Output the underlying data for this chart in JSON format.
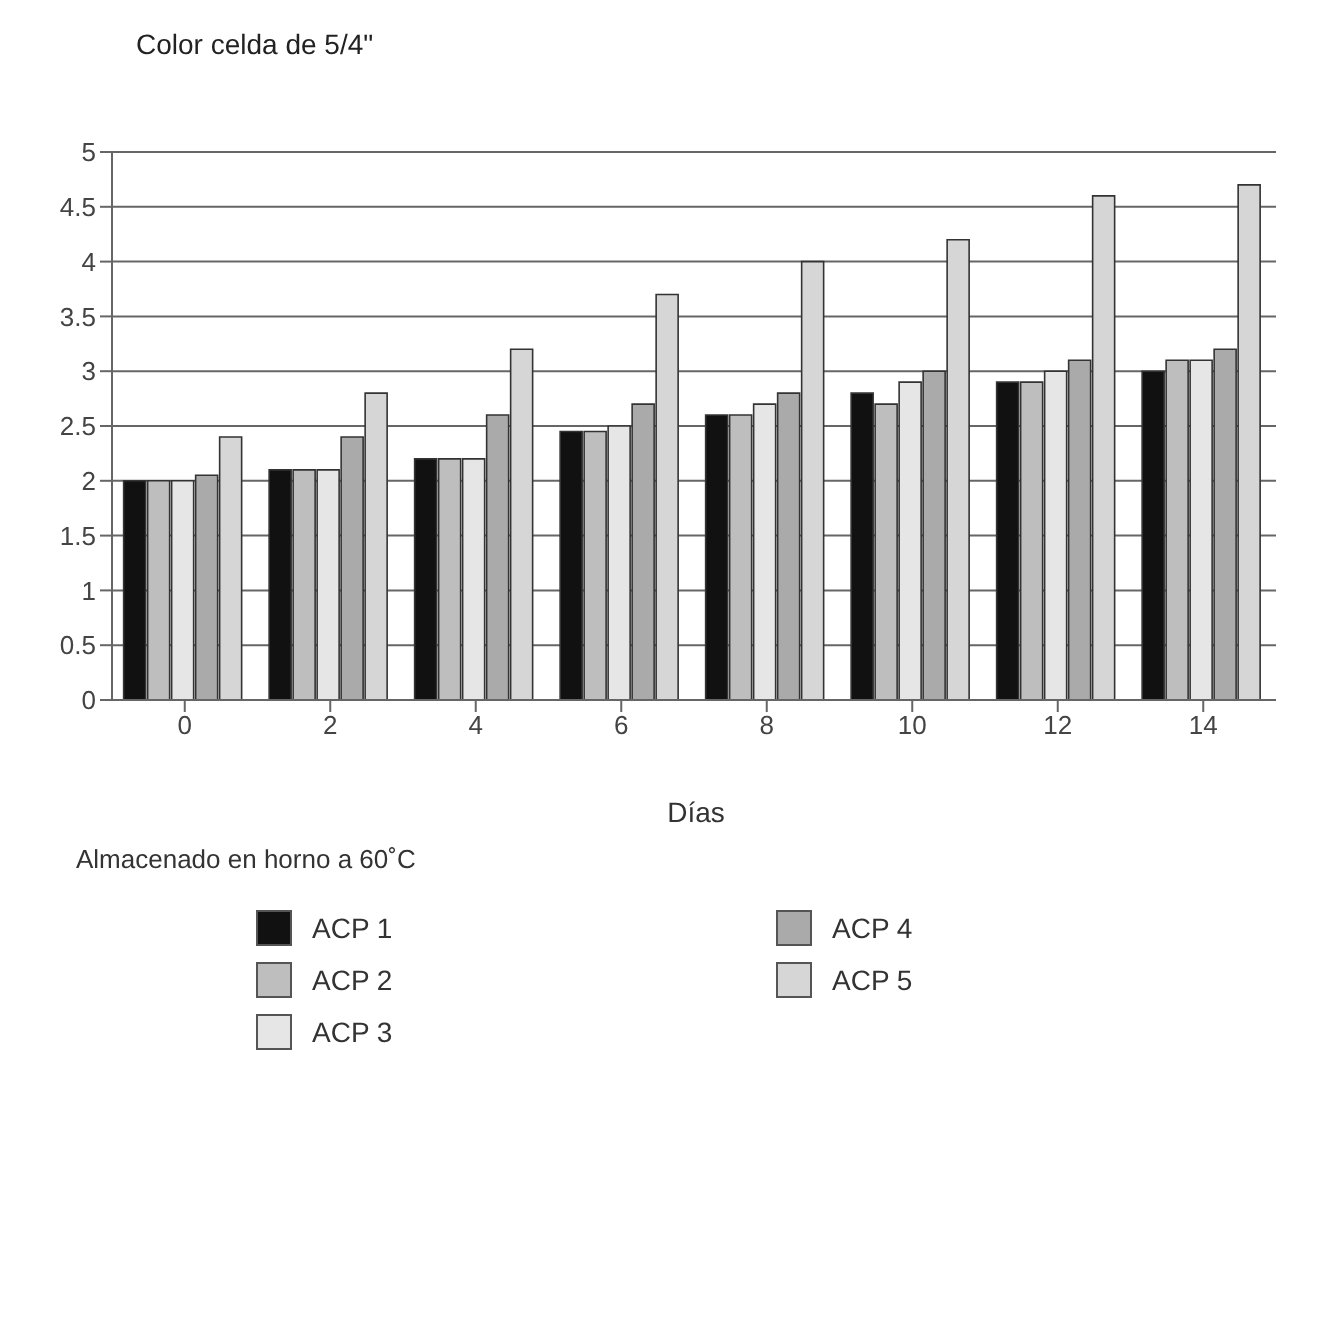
{
  "chart_data": {
    "type": "bar",
    "title": "Color celda de 5/4\"",
    "xlabel": "Días",
    "legend_title": "Almacenado en horno a 60˚C",
    "categories": [
      "0",
      "2",
      "4",
      "6",
      "8",
      "10",
      "12",
      "14"
    ],
    "series": [
      {
        "name": "ACP 1",
        "color": "#111111",
        "values": [
          2.0,
          2.1,
          2.2,
          2.45,
          2.6,
          2.8,
          2.9,
          3.0
        ]
      },
      {
        "name": "ACP 2",
        "color": "#bebebe",
        "values": [
          2.0,
          2.1,
          2.2,
          2.45,
          2.6,
          2.7,
          2.9,
          3.1
        ]
      },
      {
        "name": "ACP 3",
        "color": "#e6e6e6",
        "values": [
          2.0,
          2.1,
          2.2,
          2.5,
          2.7,
          2.9,
          3.0,
          3.1
        ]
      },
      {
        "name": "ACP 4",
        "color": "#aaaaaa",
        "values": [
          2.05,
          2.4,
          2.6,
          2.7,
          2.8,
          3.0,
          3.1,
          3.2
        ]
      },
      {
        "name": "ACP 5",
        "color": "#d6d6d6",
        "values": [
          2.4,
          2.8,
          3.2,
          3.7,
          4.0,
          4.2,
          4.6,
          4.7
        ]
      }
    ],
    "ylim": [
      0,
      5
    ],
    "yticks": [
      0,
      0.5,
      1,
      1.5,
      2,
      2.5,
      3,
      3.5,
      4,
      4.5,
      5
    ],
    "grid": "y",
    "legend": "bottom"
  }
}
